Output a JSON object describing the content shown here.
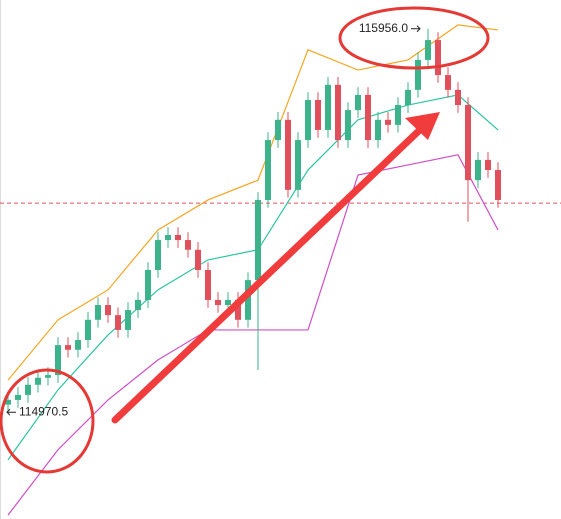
{
  "chart_data": {
    "type": "candlestick",
    "open": [
      114990,
      115002,
      115015,
      115041,
      115059,
      115066,
      115143,
      115131,
      115156,
      115208,
      115246,
      115220,
      115182,
      115233,
      115259,
      115336,
      115413,
      115426,
      115413,
      115388,
      115336,
      115259,
      115246,
      115259,
      115208,
      115310,
      115516,
      115670,
      115722,
      115542,
      115670,
      115773,
      115696,
      115812,
      115670,
      115747,
      115786,
      115670,
      115722,
      115709,
      115760,
      115799,
      115876,
      115927,
      115837,
      115799,
      115760,
      115567,
      115619,
      115593
    ],
    "high": [
      115022,
      115035,
      115061,
      115079,
      115086,
      115163,
      115163,
      115176,
      115228,
      115266,
      115266,
      115240,
      115253,
      115279,
      115356,
      115433,
      115446,
      115446,
      115433,
      115408,
      115356,
      115279,
      115279,
      115279,
      115330,
      115536,
      115690,
      115742,
      115742,
      115690,
      115793,
      115793,
      115832,
      115832,
      115767,
      115806,
      115806,
      115742,
      115742,
      115780,
      115819,
      115896,
      115956,
      115947,
      115857,
      115819,
      115780,
      115639,
      115639,
      115613
    ],
    "low": [
      114970.5,
      114982,
      114995,
      115021,
      115039,
      115046,
      115111,
      115111,
      115136,
      115188,
      115200,
      115162,
      115162,
      115213,
      115239,
      115316,
      115393,
      115393,
      115368,
      115316,
      115239,
      115226,
      115226,
      115188,
      115188,
      115079,
      115496,
      115650,
      115522,
      115522,
      115650,
      115676,
      115676,
      115650,
      115650,
      115727,
      115650,
      115650,
      115689,
      115689,
      115740,
      115779,
      115856,
      115817,
      115779,
      115740,
      115460,
      115547,
      115573,
      115496
    ],
    "close": [
      115002,
      115015,
      115041,
      115059,
      115066,
      115143,
      115131,
      115156,
      115208,
      115246,
      115220,
      115182,
      115233,
      115259,
      115336,
      115413,
      115426,
      115413,
      115388,
      115336,
      115259,
      115246,
      115259,
      115208,
      115310,
      115516,
      115670,
      115722,
      115542,
      115670,
      115773,
      115696,
      115812,
      115670,
      115747,
      115786,
      115670,
      115722,
      115709,
      115760,
      115799,
      115876,
      115927,
      115837,
      115799,
      115760,
      115567,
      115619,
      115593,
      115516
    ],
    "up_color": "#3cb38a",
    "down_color": "#e0505c",
    "band_x": [
      0,
      5,
      10,
      15,
      20,
      25,
      30,
      35,
      40,
      45,
      49
    ],
    "bands": [
      {
        "color": "#f5a623",
        "values": [
          115053,
          115208,
          115285,
          115439,
          115516,
          115567,
          115902,
          115850,
          115876,
          115966,
          115953
        ]
      },
      {
        "color": "#2ec4a0",
        "values": [
          114848,
          115028,
          115169,
          115285,
          115362,
          115388,
          115593,
          115722,
          115760,
          115786,
          115696
        ]
      },
      {
        "color": "#d04fc8",
        "values": [
          114706,
          114874,
          115002,
          115105,
          115182,
          115182,
          115182,
          115580,
          115606,
          115632,
          115439
        ]
      }
    ],
    "price_line": 115508,
    "annotations": [
      {
        "index": 42,
        "value": 115956,
        "label": "115956.0"
      },
      {
        "index": 0,
        "value": 114970.5,
        "label": "114970.5"
      }
    ],
    "ylim": [
      114696,
      116030
    ]
  }
}
